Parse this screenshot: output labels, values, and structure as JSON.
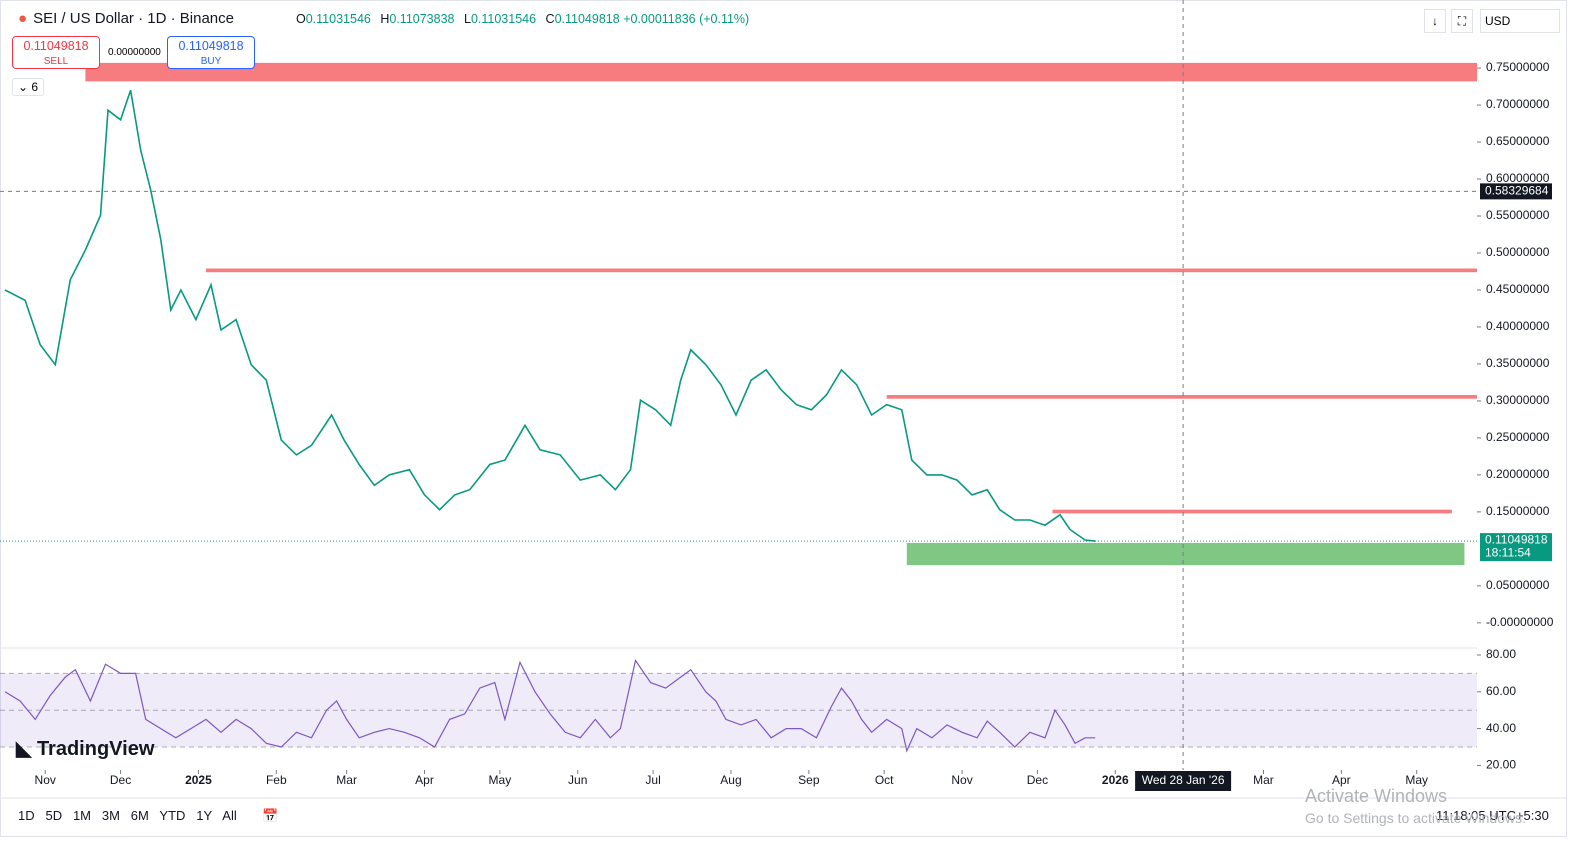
{
  "header": {
    "title": "SEI / US Dollar · 1D · Binance",
    "ohlc": [
      {
        "k": "O",
        "v": "0.11031546"
      },
      {
        "k": "H",
        "v": "0.11073838"
      },
      {
        "k": "L",
        "v": "0.11031546"
      },
      {
        "k": "C",
        "v": "0.11049818"
      }
    ],
    "change": "+0.00011836 (+0.11%)"
  },
  "trade": {
    "sell_price": "0.11049818",
    "sell": "SELL",
    "spread": "0.00000000",
    "buy_price": "0.11049818",
    "buy": "BUY"
  },
  "indicators_count": "6",
  "currency": "USD",
  "logo": "TradingView",
  "ranges": [
    "1D",
    "5D",
    "1M",
    "3M",
    "6M",
    "YTD",
    "1Y",
    "All"
  ],
  "clock": "11:18:05 UTC+5:30",
  "watermark": {
    "title": "Activate Windows",
    "text": "Go to Settings to activate Windows."
  },
  "chart_data": [
    {
      "type": "line",
      "name": "price",
      "color": "#089981",
      "x": [
        -16,
        -8,
        -2,
        4,
        10,
        16,
        22,
        25,
        30,
        34,
        38,
        42,
        46,
        50,
        54,
        60,
        66,
        70,
        76,
        82,
        88,
        94,
        100,
        106,
        114,
        119,
        125,
        131,
        137,
        145,
        151,
        157,
        163,
        169,
        177,
        183,
        191,
        197,
        205,
        213,
        221,
        227,
        233,
        237,
        243,
        249,
        253,
        257,
        263,
        269,
        275,
        281,
        287,
        293,
        299,
        305,
        311,
        317,
        323,
        329,
        335,
        341,
        345,
        351,
        357,
        363,
        369,
        375,
        380,
        386,
        392,
        398,
        404,
        408,
        414,
        418
      ],
      "values": [
        0.45,
        0.436,
        0.376,
        0.349,
        0.464,
        0.504,
        0.551,
        0.693,
        0.68,
        0.72,
        0.639,
        0.585,
        0.518,
        0.423,
        0.45,
        0.41,
        0.457,
        0.396,
        0.41,
        0.349,
        0.328,
        0.247,
        0.227,
        0.24,
        0.281,
        0.247,
        0.214,
        0.186,
        0.2,
        0.207,
        0.173,
        0.153,
        0.173,
        0.18,
        0.214,
        0.22,
        0.267,
        0.234,
        0.227,
        0.193,
        0.2,
        0.18,
        0.207,
        0.301,
        0.288,
        0.267,
        0.328,
        0.369,
        0.349,
        0.322,
        0.281,
        0.328,
        0.342,
        0.315,
        0.295,
        0.288,
        0.308,
        0.342,
        0.322,
        0.281,
        0.295,
        0.288,
        0.22,
        0.2,
        0.2,
        0.193,
        0.173,
        0.18,
        0.153,
        0.139,
        0.139,
        0.132,
        0.146,
        0.126,
        0.112,
        0.1105
      ],
      "xlim": [
        -18,
        570
      ],
      "ylim": [
        -0.034,
        0.842
      ],
      "xticks": [
        {
          "value": 0,
          "label": "Nov"
        },
        {
          "value": 30,
          "label": "Dec"
        },
        {
          "value": 61,
          "label": "2025"
        },
        {
          "value": 92,
          "label": "Feb"
        },
        {
          "value": 120,
          "label": "Mar"
        },
        {
          "value": 151,
          "label": "Apr"
        },
        {
          "value": 181,
          "label": "May"
        },
        {
          "value": 212,
          "label": "Jun"
        },
        {
          "value": 242,
          "label": "Jul"
        },
        {
          "value": 273,
          "label": "Aug"
        },
        {
          "value": 304,
          "label": "Sep"
        },
        {
          "value": 334,
          "label": "Oct"
        },
        {
          "value": 365,
          "label": "Nov"
        },
        {
          "value": 395,
          "label": "Dec"
        },
        {
          "value": 426,
          "label": "2026"
        },
        {
          "value": 485,
          "label": "Mar"
        },
        {
          "value": 516,
          "label": "Apr"
        },
        {
          "value": 546,
          "label": "May"
        }
      ],
      "yticks": [
        {
          "value": 0.75,
          "label": "0.75000000"
        },
        {
          "value": 0.7,
          "label": "0.70000000"
        },
        {
          "value": 0.65,
          "label": "0.65000000"
        },
        {
          "value": 0.6,
          "label": "0.60000000"
        },
        {
          "value": 0.55,
          "label": "0.55000000"
        },
        {
          "value": 0.5,
          "label": "0.50000000"
        },
        {
          "value": 0.45,
          "label": "0.45000000"
        },
        {
          "value": 0.4,
          "label": "0.40000000"
        },
        {
          "value": 0.35,
          "label": "0.35000000"
        },
        {
          "value": 0.3,
          "label": "0.30000000"
        },
        {
          "value": 0.25,
          "label": "0.25000000"
        },
        {
          "value": 0.2,
          "label": "0.20000000"
        },
        {
          "value": 0.15,
          "label": "0.15000000"
        },
        {
          "value": 0.05,
          "label": "0.05000000"
        },
        {
          "value": 0,
          "label": "-0.00000000"
        }
      ],
      "zones": [
        {
          "x": [
            16,
            570
          ],
          "y": [
            0.732,
            0.757
          ],
          "color": "#f77c80"
        },
        {
          "x": [
            64,
            570
          ],
          "y": [
            0.474,
            0.479
          ],
          "color": "#f77c80"
        },
        {
          "x": [
            335,
            570
          ],
          "y": [
            0.303,
            0.308
          ],
          "color": "#f77c80"
        },
        {
          "x": [
            401,
            560
          ],
          "y": [
            0.148,
            0.153
          ],
          "color": "#f77c80"
        },
        {
          "x": [
            343,
            565
          ],
          "y": [
            0.078,
            0.108
          ],
          "color": "#81c784"
        }
      ],
      "last_price": {
        "value": 0.11049818,
        "label": "0.11049818"
      },
      "countdown": "18:11:54",
      "crosshair": {
        "y": {
          "value": 0.58329684,
          "label": "0.58329684"
        },
        "x": {
          "value": 453,
          "label": "Wed 28 Jan '26"
        }
      }
    },
    {
      "type": "line",
      "name": "rsi",
      "color": "#7e57c2",
      "x": [
        -16,
        -10,
        -4,
        2,
        8,
        12,
        18,
        24,
        30,
        36,
        40,
        46,
        52,
        58,
        64,
        70,
        76,
        82,
        88,
        94,
        100,
        106,
        112,
        116,
        120,
        125,
        131,
        137,
        143,
        149,
        155,
        161,
        167,
        173,
        179,
        183,
        189,
        195,
        201,
        207,
        213,
        219,
        225,
        229,
        235,
        241,
        247,
        253,
        257,
        263,
        267,
        271,
        277,
        283,
        289,
        295,
        301,
        307,
        313,
        317,
        321,
        325,
        329,
        335,
        341,
        343,
        347,
        353,
        359,
        365,
        371,
        375,
        380,
        386,
        392,
        398,
        402,
        406,
        410,
        414,
        418
      ],
      "values": [
        60,
        55,
        45,
        58,
        68,
        72,
        55,
        75,
        70,
        70,
        45,
        40,
        35,
        40,
        45,
        38,
        45,
        40,
        32,
        30,
        38,
        35,
        50,
        55,
        45,
        35,
        38,
        40,
        38,
        35,
        30,
        45,
        48,
        62,
        65,
        45,
        76,
        60,
        48,
        38,
        35,
        45,
        35,
        40,
        77,
        65,
        62,
        68,
        72,
        60,
        55,
        45,
        42,
        45,
        35,
        40,
        40,
        35,
        52,
        62,
        55,
        45,
        38,
        45,
        40,
        28,
        40,
        35,
        42,
        38,
        35,
        44,
        38,
        30,
        38,
        35,
        50,
        42,
        32,
        35,
        35
      ],
      "ylim": [
        17.5,
        83.8
      ],
      "bands": [
        70,
        50,
        30
      ],
      "yticks": [
        {
          "value": 80,
          "label": "80.00"
        },
        {
          "value": 60,
          "label": "60.00"
        },
        {
          "value": 40,
          "label": "40.00"
        },
        {
          "value": 20,
          "label": "20.00"
        }
      ]
    }
  ]
}
